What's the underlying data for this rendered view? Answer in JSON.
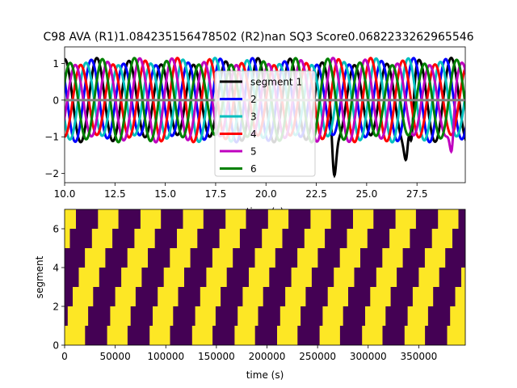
{
  "figure": {
    "title": "C98 AVA (R1)1.084235156478502 (R2)nan SQ3 Score0.0682233262965546"
  },
  "chart_data": [
    {
      "type": "line",
      "title": "C98 AVA (R1)1.084235156478502 (R2)nan SQ3 Score0.0682233262965546",
      "xlabel": "time (s)",
      "ylabel": "",
      "xlim": [
        10.0,
        29.9
      ],
      "ylim": [
        -2.25,
        1.45
      ],
      "xticks": [
        "10.0",
        "12.5",
        "15.0",
        "17.5",
        "20.0",
        "22.5",
        "25.0",
        "27.5"
      ],
      "xtick_values": [
        10.0,
        12.5,
        15.0,
        17.5,
        20.0,
        22.5,
        25.0,
        27.5
      ],
      "yticks": [
        "1",
        "0",
        "−1",
        "−2"
      ],
      "ytick_values": [
        1,
        0,
        -1,
        -2
      ],
      "grid": false,
      "legend_position": "center",
      "series": [
        {
          "name": "segment 1",
          "color": "#000000",
          "period": 1.6,
          "phase": 0.0,
          "dips": [
            [
              23.4,
              -2.05
            ],
            [
              26.95,
              -1.65
            ],
            [
              27.2,
              -1.1
            ]
          ]
        },
        {
          "name": "2",
          "color": "#0000ff",
          "period": 1.6,
          "phase": 0.27,
          "dips": []
        },
        {
          "name": "3",
          "color": "#00bfbf",
          "period": 1.6,
          "phase": 0.53,
          "dips": []
        },
        {
          "name": "4",
          "color": "#ff0000",
          "period": 1.6,
          "phase": 0.8,
          "dips": []
        },
        {
          "name": "5",
          "color": "#bf00bf",
          "period": 1.6,
          "phase": 1.07,
          "dips": [
            [
              29.2,
              -1.4
            ]
          ]
        },
        {
          "name": "6",
          "color": "#008000",
          "period": 1.6,
          "phase": 1.33,
          "dips": []
        }
      ],
      "reference_line": {
        "y": 0,
        "color": "#808080"
      }
    },
    {
      "type": "heatmap",
      "title": "",
      "xlabel": "time (s)",
      "ylabel": "segment",
      "xlim": [
        0,
        396000
      ],
      "ylim": [
        0,
        7
      ],
      "xticks": [
        "0",
        "50000",
        "100000",
        "150000",
        "200000",
        "250000",
        "300000",
        "350000"
      ],
      "xtick_values": [
        0,
        50000,
        100000,
        150000,
        200000,
        250000,
        300000,
        350000
      ],
      "yticks": [
        "0",
        "2",
        "4",
        "6"
      ],
      "ytick_values": [
        0,
        2,
        4,
        6
      ],
      "rows": 7,
      "colors": {
        "on": "#fde725",
        "off": "#440154"
      },
      "period": 42000,
      "duty": 0.48,
      "row_offsets": [
        0,
        3000,
        8000,
        14000,
        20000,
        27000,
        33000
      ]
    }
  ]
}
